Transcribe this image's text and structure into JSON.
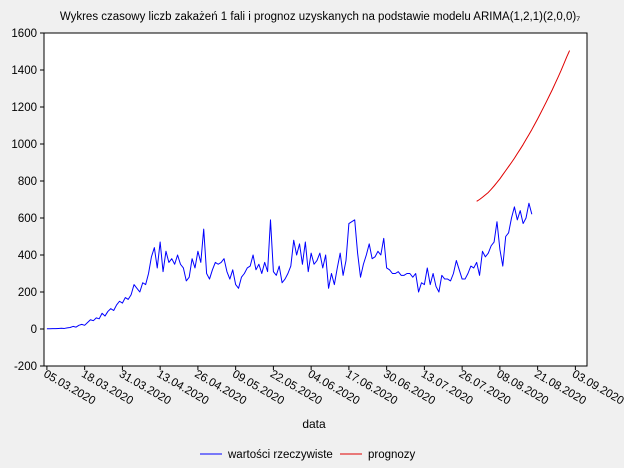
{
  "chart_data": {
    "type": "line",
    "title": "Wykres czasowy liczb zakażeń 1 fali i prognoz uzyskanych na podstawie modelu ARIMA(1,2,1)(2,0,0)₇",
    "xlabel": "data",
    "ylabel": "",
    "ylim": [
      -200,
      1600
    ],
    "yticks": [
      -200,
      0,
      200,
      400,
      600,
      800,
      1000,
      1200,
      1400,
      1600
    ],
    "xticks": [
      "05.03.2020",
      "18.03.2020",
      "31.03.2020",
      "13.04.2020",
      "26.04.2020",
      "09.05.2020",
      "22.05.2020",
      "04.06.2020",
      "17.06.2020",
      "30.06.2020",
      "13.07.2020",
      "26.07.2020",
      "08.08.2020",
      "21.08.2020",
      "03.09.2020"
    ],
    "x_start_date": "2020-03-05",
    "x_day_range": [
      -1,
      186
    ],
    "grid": false,
    "legend_position": "bottom",
    "series": [
      {
        "name": "wartości rzeczywiste",
        "color": "#0000ff",
        "start_date": "2020-03-05",
        "values": [
          1,
          1,
          2,
          2,
          3,
          4,
          3,
          6,
          8,
          14,
          10,
          20,
          25,
          20,
          35,
          50,
          45,
          60,
          55,
          85,
          70,
          95,
          110,
          100,
          130,
          150,
          140,
          170,
          160,
          185,
          240,
          220,
          200,
          250,
          240,
          300,
          390,
          440,
          330,
          470,
          310,
          420,
          360,
          380,
          350,
          400,
          350,
          330,
          260,
          280,
          380,
          330,
          420,
          360,
          540,
          300,
          270,
          320,
          360,
          350,
          360,
          380,
          310,
          270,
          320,
          240,
          220,
          280,
          300,
          330,
          340,
          400,
          320,
          350,
          300,
          360,
          310,
          590,
          310,
          290,
          340,
          250,
          270,
          300,
          340,
          480,
          400,
          460,
          350,
          470,
          310,
          410,
          350,
          370,
          410,
          330,
          400,
          220,
          300,
          240,
          330,
          410,
          290,
          370,
          570,
          580,
          590,
          410,
          280,
          350,
          400,
          460,
          380,
          390,
          420,
          400,
          490,
          330,
          320,
          300,
          300,
          310,
          290,
          290,
          300,
          300,
          280,
          300,
          200,
          250,
          240,
          330,
          240,
          300,
          230,
          200,
          290,
          270,
          270,
          260,
          300,
          370,
          320,
          270,
          270,
          300,
          340,
          330,
          360,
          290,
          420,
          390,
          410,
          450,
          470,
          580,
          430,
          340,
          500,
          520,
          600,
          660,
          590,
          640,
          570,
          600,
          680,
          620
        ],
        "marker": "none"
      },
      {
        "name": "prognozy",
        "color": "#e00000",
        "start_date": "2020-07-31",
        "values": [
          690,
          700,
          712,
          725,
          738,
          755,
          773,
          792,
          812,
          834,
          856,
          878,
          900,
          923,
          948,
          972,
          997,
          1024,
          1051,
          1078,
          1107,
          1136,
          1166,
          1197,
          1228,
          1260,
          1292,
          1326,
          1360,
          1395,
          1432,
          1470,
          1505
        ],
        "marker": "none"
      }
    ]
  }
}
